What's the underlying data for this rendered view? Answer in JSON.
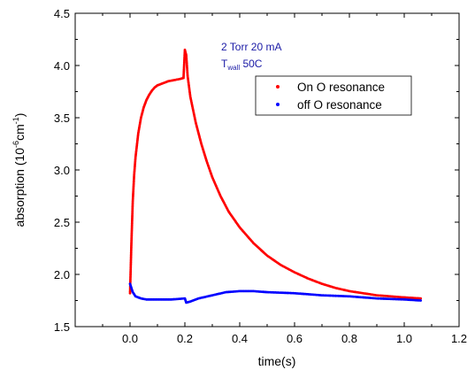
{
  "chart_data": {
    "type": "scatter",
    "xlabel": "time(s)",
    "ylabel_main": "absorption (10",
    "ylabel_sup": "-6",
    "ylabel_mid": "cm",
    "ylabel_sup2": "-1",
    "ylabel_end": ")",
    "xlim": [
      -0.2,
      1.2
    ],
    "ylim": [
      1.5,
      4.5
    ],
    "xticks": [
      0.0,
      0.2,
      0.4,
      0.6,
      0.8,
      1.0,
      1.2
    ],
    "xtick_labels": [
      "0.0",
      "0.2",
      "0.4",
      "0.6",
      "0.8",
      "1.0",
      "1.2"
    ],
    "yticks": [
      1.5,
      2.0,
      2.5,
      3.0,
      3.5,
      4.0,
      4.5
    ],
    "ytick_labels": [
      "1.5",
      "2.0",
      "2.5",
      "3.0",
      "3.5",
      "4.0",
      "4.5"
    ],
    "grid": false,
    "legend_position": "top-right",
    "annotation": {
      "line1": "2 Torr 20 mA",
      "line2_main": "T",
      "line2_sub": "wall",
      "line2_end": " 50C"
    },
    "series": [
      {
        "name": "On O resonance",
        "color": "#ff0000",
        "points": [
          [
            0.0,
            1.82
          ],
          [
            0.005,
            2.3
          ],
          [
            0.01,
            2.7
          ],
          [
            0.015,
            2.95
          ],
          [
            0.02,
            3.12
          ],
          [
            0.03,
            3.35
          ],
          [
            0.04,
            3.5
          ],
          [
            0.05,
            3.6
          ],
          [
            0.06,
            3.67
          ],
          [
            0.07,
            3.72
          ],
          [
            0.08,
            3.76
          ],
          [
            0.09,
            3.79
          ],
          [
            0.1,
            3.81
          ],
          [
            0.12,
            3.83
          ],
          [
            0.14,
            3.85
          ],
          [
            0.16,
            3.86
          ],
          [
            0.18,
            3.87
          ],
          [
            0.195,
            3.88
          ],
          [
            0.2,
            4.15
          ],
          [
            0.205,
            4.1
          ],
          [
            0.21,
            3.9
          ],
          [
            0.22,
            3.7
          ],
          [
            0.24,
            3.45
          ],
          [
            0.26,
            3.25
          ],
          [
            0.28,
            3.08
          ],
          [
            0.3,
            2.93
          ],
          [
            0.33,
            2.75
          ],
          [
            0.36,
            2.6
          ],
          [
            0.4,
            2.45
          ],
          [
            0.45,
            2.3
          ],
          [
            0.5,
            2.18
          ],
          [
            0.55,
            2.09
          ],
          [
            0.6,
            2.02
          ],
          [
            0.65,
            1.96
          ],
          [
            0.7,
            1.91
          ],
          [
            0.75,
            1.87
          ],
          [
            0.8,
            1.84
          ],
          [
            0.85,
            1.82
          ],
          [
            0.9,
            1.8
          ],
          [
            0.95,
            1.79
          ],
          [
            1.0,
            1.78
          ],
          [
            1.06,
            1.77
          ]
        ]
      },
      {
        "name": "off O resonance",
        "color": "#0000ff",
        "points": [
          [
            0.0,
            1.91
          ],
          [
            0.01,
            1.83
          ],
          [
            0.02,
            1.79
          ],
          [
            0.04,
            1.77
          ],
          [
            0.06,
            1.76
          ],
          [
            0.1,
            1.76
          ],
          [
            0.15,
            1.76
          ],
          [
            0.2,
            1.77
          ],
          [
            0.205,
            1.73
          ],
          [
            0.22,
            1.74
          ],
          [
            0.25,
            1.77
          ],
          [
            0.3,
            1.8
          ],
          [
            0.35,
            1.83
          ],
          [
            0.4,
            1.84
          ],
          [
            0.45,
            1.84
          ],
          [
            0.5,
            1.83
          ],
          [
            0.6,
            1.82
          ],
          [
            0.7,
            1.8
          ],
          [
            0.8,
            1.79
          ],
          [
            0.9,
            1.77
          ],
          [
            1.0,
            1.76
          ],
          [
            1.06,
            1.75
          ]
        ]
      }
    ]
  }
}
